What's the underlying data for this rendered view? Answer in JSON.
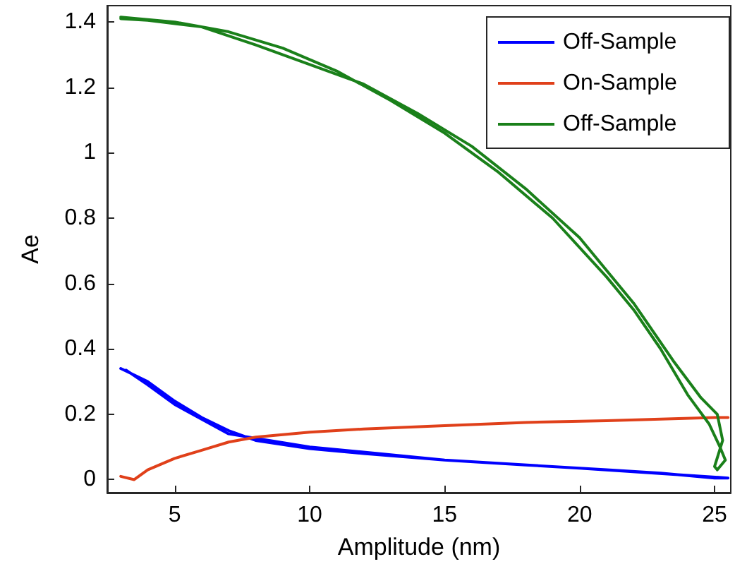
{
  "chart_data": {
    "type": "line",
    "xlabel": "Amplitude (nm)",
    "ylabel": "Ae",
    "xlim": [
      2.5,
      25.6
    ],
    "xticks": [
      5,
      10,
      15,
      20,
      25
    ],
    "ylim": [
      -0.04,
      1.45
    ],
    "yticks": [
      0,
      0.2,
      0.4,
      0.6,
      0.8,
      1,
      1.2,
      1.4
    ],
    "grid": false,
    "legend": "top right",
    "marker": "none",
    "line_style": "solid",
    "series": [
      {
        "name": "Off-Sample",
        "color": "#0000ff",
        "x": [
          3,
          4,
          5,
          6,
          7,
          8,
          10,
          12,
          15,
          18,
          21,
          23,
          25,
          25.5,
          20,
          15,
          10,
          7,
          5,
          4,
          3.2
        ],
        "values": [
          0.34,
          0.3,
          0.24,
          0.19,
          0.15,
          0.12,
          0.095,
          0.08,
          0.06,
          0.045,
          0.03,
          0.02,
          0.005,
          0.005,
          0.035,
          0.06,
          0.1,
          0.14,
          0.23,
          0.29,
          0.335
        ]
      },
      {
        "name": "On-Sample",
        "color": "#e0401a",
        "x": [
          3,
          3.5,
          4,
          5,
          6,
          7,
          8,
          10,
          12,
          15,
          18,
          21,
          25,
          25.5
        ],
        "values": [
          0.01,
          0.0,
          0.03,
          0.065,
          0.09,
          0.115,
          0.13,
          0.145,
          0.155,
          0.165,
          0.175,
          0.18,
          0.19,
          0.19
        ]
      },
      {
        "name": "Off-Sample",
        "color": "#1a801a",
        "x": [
          3,
          5,
          7,
          9,
          11,
          13,
          15,
          17,
          19,
          21,
          22,
          23,
          24,
          24.8,
          25.2,
          25.4,
          25.1,
          25,
          25.3,
          25.1,
          24.5,
          23.5,
          22,
          20,
          18,
          16,
          14,
          12,
          10,
          8,
          6,
          4,
          3
        ],
        "values": [
          1.415,
          1.4,
          1.37,
          1.32,
          1.25,
          1.16,
          1.06,
          0.94,
          0.8,
          0.62,
          0.52,
          0.4,
          0.26,
          0.17,
          0.1,
          0.06,
          0.03,
          0.04,
          0.12,
          0.2,
          0.25,
          0.36,
          0.54,
          0.74,
          0.89,
          1.02,
          1.12,
          1.21,
          1.27,
          1.33,
          1.385,
          1.405,
          1.41
        ]
      }
    ]
  }
}
